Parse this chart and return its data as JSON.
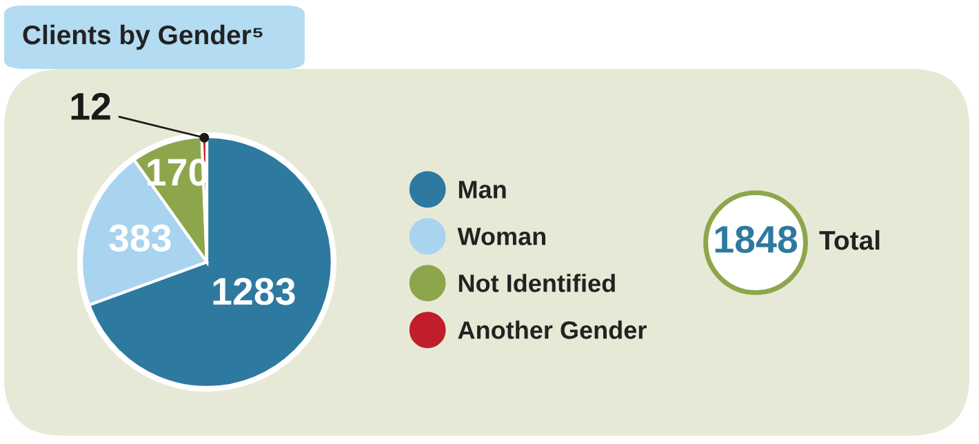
{
  "chart_data": {
    "type": "pie",
    "title": "Clients by Gender⁵",
    "categories": [
      "Man",
      "Woman",
      "Not Identified",
      "Another Gender"
    ],
    "values": [
      1283,
      383,
      170,
      12
    ],
    "colors": [
      "#2e79a0",
      "#a9d4ef",
      "#8ea64b",
      "#c01e2a"
    ],
    "data_labels": true,
    "legend": "right",
    "annotations": [
      "1848",
      "Total"
    ]
  }
}
